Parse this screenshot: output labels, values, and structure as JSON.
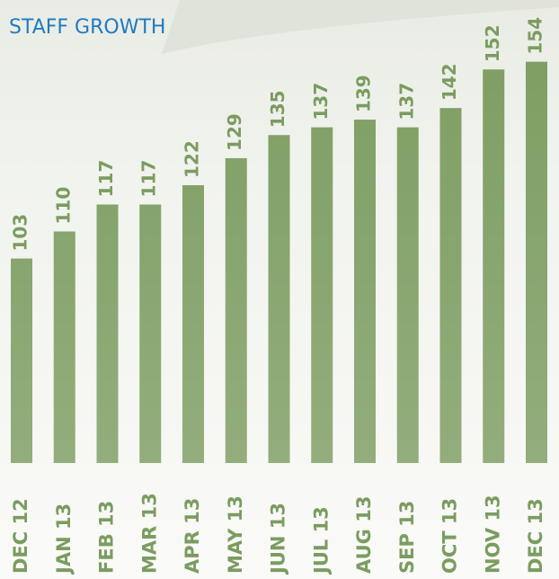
{
  "chart_data": {
    "type": "bar",
    "title": "STAFF GROWTH",
    "categories": [
      "DEC 12",
      "JAN 13",
      "FEB 13",
      "MAR 13",
      "APR 13",
      "MAY 13",
      "JUN 13",
      "JUL 13",
      "AUG 13",
      "SEP 13",
      "OCT 13",
      "NOV 13",
      "DEC 13"
    ],
    "values": [
      103,
      110,
      117,
      117,
      122,
      129,
      135,
      137,
      139,
      137,
      142,
      152,
      154
    ],
    "color": "#7b9c60",
    "ylim": [
      50,
      170
    ]
  }
}
